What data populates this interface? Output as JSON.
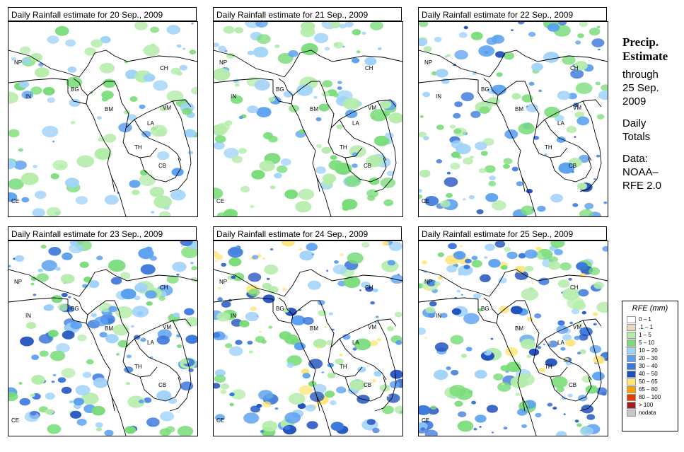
{
  "panels": [
    {
      "title": "Daily Rainfall estimate for  20 Sep., 2009",
      "intensity": 1
    },
    {
      "title": "Daily Rainfall estimate for  21 Sep., 2009",
      "intensity": 1
    },
    {
      "title": "Daily Rainfall estimate for  22 Sep., 2009",
      "intensity": 2
    },
    {
      "title": "Daily Rainfall estimate for  23 Sep., 2009",
      "intensity": 2
    },
    {
      "title": "Daily Rainfall estimate for  24 Sep., 2009",
      "intensity": 3
    },
    {
      "title": "Daily Rainfall estimate for  25 Sep., 2009",
      "intensity": 3
    }
  ],
  "countries": [
    "NP",
    "CH",
    "IN",
    "BG",
    "BM",
    "VM",
    "LA",
    "TH",
    "CB",
    "CE"
  ],
  "side": {
    "heading_line1": "Precip.",
    "heading_line2": "Estimate",
    "through": "through",
    "date_line1": "25 Sep.",
    "date_line2": "2009",
    "totals_line1": "Daily",
    "totals_line2": "Totals",
    "data_line1": "Data:",
    "data_line2": "NOAA–",
    "data_line3": "RFE 2.0"
  },
  "legend": {
    "title": "RFE (mm)",
    "items": [
      {
        "label": "0 – 1",
        "color": "#ffffff"
      },
      {
        "label": ".1 – 1",
        "color": "#e9d5b7"
      },
      {
        "label": "1 – 5",
        "color": "#b4ecaa"
      },
      {
        "label": "5 – 10",
        "color": "#78dc78"
      },
      {
        "label": "10 – 20",
        "color": "#a0d2fa"
      },
      {
        "label": "20 – 30",
        "color": "#5aa0f0"
      },
      {
        "label": "30 – 40",
        "color": "#3c78dc"
      },
      {
        "label": "40 – 50",
        "color": "#1e50be"
      },
      {
        "label": "50 – 65",
        "color": "#ffe678"
      },
      {
        "label": "65 – 80",
        "color": "#ffa000"
      },
      {
        "label": "80 – 100",
        "color": "#e13c00"
      },
      {
        "label": "> 100",
        "color": "#a01e1e"
      },
      {
        "label": "nodata",
        "color": "#c8c8c8"
      }
    ]
  }
}
